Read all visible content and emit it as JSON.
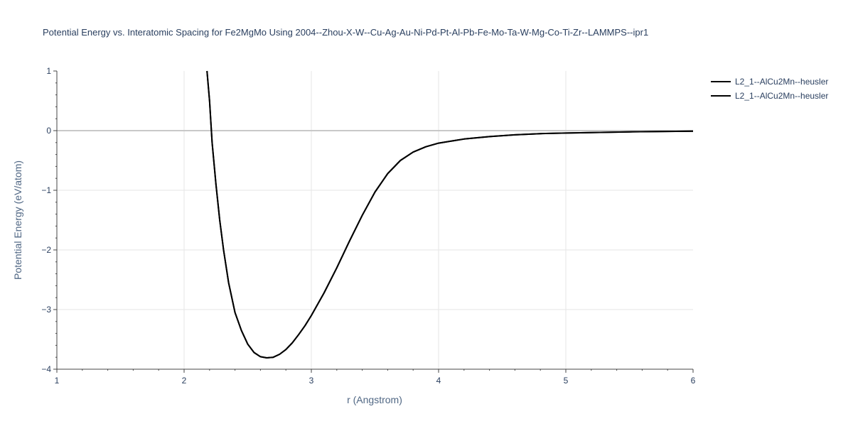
{
  "chart_data": {
    "type": "line",
    "title": "Potential Energy vs. Interatomic Spacing for Fe2MgMo Using 2004--Zhou-X-W--Cu-Ag-Au-Ni-Pd-Pt-Al-Pb-Fe-Mo-Ta-W-Mg-Co-Ti-Zr--LAMMPS--ipr1",
    "xlabel": "r (Angstrom)",
    "ylabel": "Potential Energy (eV/atom)",
    "xlim": [
      1,
      6
    ],
    "ylim": [
      -4,
      1
    ],
    "x_ticks": [
      "1",
      "2",
      "3",
      "4",
      "5",
      "6"
    ],
    "y_ticks": [
      "1",
      "0",
      "−1",
      "−2",
      "−3",
      "−4"
    ],
    "grid": true,
    "legend_position": "top-right",
    "series": [
      {
        "name": "L2_1--AlCu2Mn--heusler",
        "color": "#000000",
        "x": [
          2.18,
          2.2,
          2.22,
          2.25,
          2.28,
          2.31,
          2.35,
          2.4,
          2.45,
          2.5,
          2.55,
          2.6,
          2.65,
          2.7,
          2.75,
          2.8,
          2.85,
          2.9,
          2.95,
          3.0,
          3.1,
          3.2,
          3.3,
          3.4,
          3.5,
          3.6,
          3.7,
          3.8,
          3.9,
          4.0,
          4.2,
          4.4,
          4.6,
          4.8,
          5.0,
          5.5,
          6.0
        ],
        "y": [
          1.0,
          0.5,
          -0.2,
          -0.9,
          -1.5,
          -2.0,
          -2.55,
          -3.05,
          -3.35,
          -3.58,
          -3.72,
          -3.79,
          -3.81,
          -3.8,
          -3.75,
          -3.67,
          -3.56,
          -3.42,
          -3.27,
          -3.1,
          -2.72,
          -2.3,
          -1.85,
          -1.42,
          -1.03,
          -0.72,
          -0.5,
          -0.36,
          -0.27,
          -0.21,
          -0.14,
          -0.1,
          -0.07,
          -0.05,
          -0.04,
          -0.02,
          -0.01
        ]
      },
      {
        "name": "L2_1--AlCu2Mn--heusler",
        "color": "#000000",
        "x": [
          2.18,
          2.2,
          2.22,
          2.25,
          2.28,
          2.31,
          2.35,
          2.4,
          2.45,
          2.5,
          2.55,
          2.6,
          2.65,
          2.7,
          2.75,
          2.8,
          2.85,
          2.9,
          2.95,
          3.0,
          3.1,
          3.2,
          3.3,
          3.4,
          3.5,
          3.6,
          3.7,
          3.8,
          3.9,
          4.0,
          4.2,
          4.4,
          4.6,
          4.8,
          5.0,
          5.5,
          6.0
        ],
        "y": [
          1.0,
          0.5,
          -0.2,
          -0.9,
          -1.5,
          -2.0,
          -2.55,
          -3.05,
          -3.35,
          -3.58,
          -3.72,
          -3.79,
          -3.81,
          -3.8,
          -3.75,
          -3.67,
          -3.56,
          -3.42,
          -3.27,
          -3.1,
          -2.72,
          -2.3,
          -1.85,
          -1.42,
          -1.03,
          -0.72,
          -0.5,
          -0.36,
          -0.27,
          -0.21,
          -0.14,
          -0.1,
          -0.07,
          -0.05,
          -0.04,
          -0.02,
          -0.01
        ]
      }
    ]
  }
}
